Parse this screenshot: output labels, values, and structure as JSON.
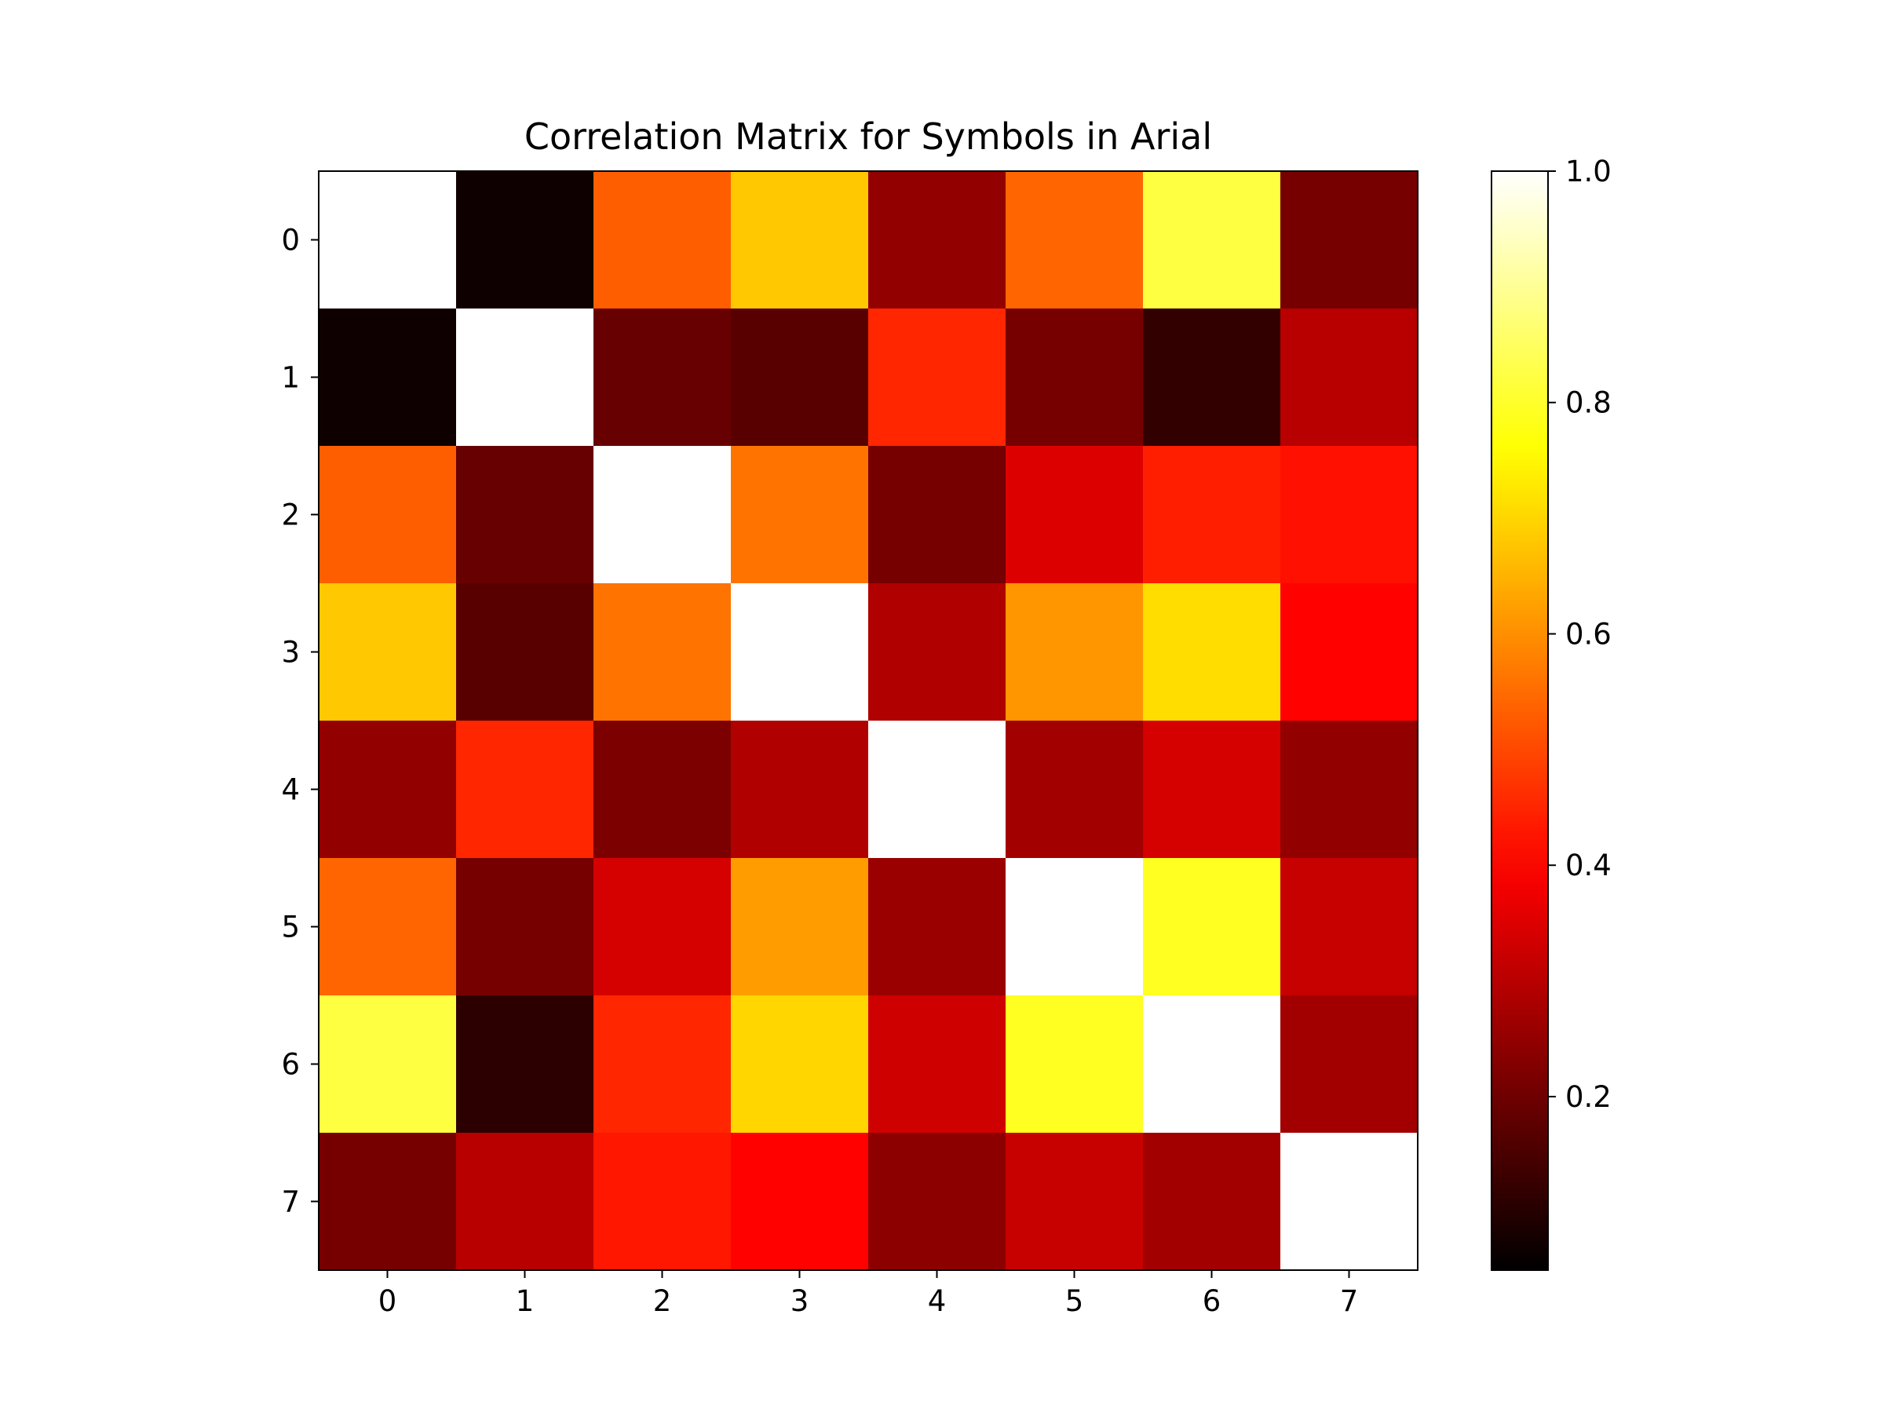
{
  "chart_data": {
    "type": "heatmap",
    "title": "Correlation Matrix for Symbols in Arial",
    "x_ticks": [
      "0",
      "1",
      "2",
      "3",
      "4",
      "5",
      "6",
      "7"
    ],
    "y_ticks": [
      "0",
      "1",
      "2",
      "3",
      "4",
      "5",
      "6",
      "7"
    ],
    "matrix": [
      [
        1.0,
        0.07,
        0.53,
        0.68,
        0.25,
        0.54,
        0.82,
        0.21
      ],
      [
        0.07,
        1.0,
        0.19,
        0.17,
        0.45,
        0.21,
        0.12,
        0.3
      ],
      [
        0.53,
        0.19,
        1.0,
        0.56,
        0.21,
        0.35,
        0.44,
        0.42
      ],
      [
        0.68,
        0.17,
        0.56,
        1.0,
        0.29,
        0.61,
        0.71,
        0.4
      ],
      [
        0.25,
        0.45,
        0.22,
        0.29,
        1.0,
        0.27,
        0.34,
        0.25
      ],
      [
        0.54,
        0.21,
        0.34,
        0.62,
        0.26,
        1.0,
        0.79,
        0.32
      ],
      [
        0.82,
        0.11,
        0.45,
        0.7,
        0.33,
        0.79,
        1.0,
        0.27
      ],
      [
        0.21,
        0.3,
        0.43,
        0.4,
        0.24,
        0.32,
        0.27,
        1.0
      ]
    ],
    "colormap": "hot",
    "colorbar": {
      "vmin": 0.05,
      "vmax": 1.0,
      "ticks": [
        0.2,
        0.4,
        0.6,
        0.8,
        1.0
      ],
      "tick_labels": [
        "0.2",
        "0.4",
        "0.6",
        "0.8",
        "1.0"
      ]
    }
  }
}
